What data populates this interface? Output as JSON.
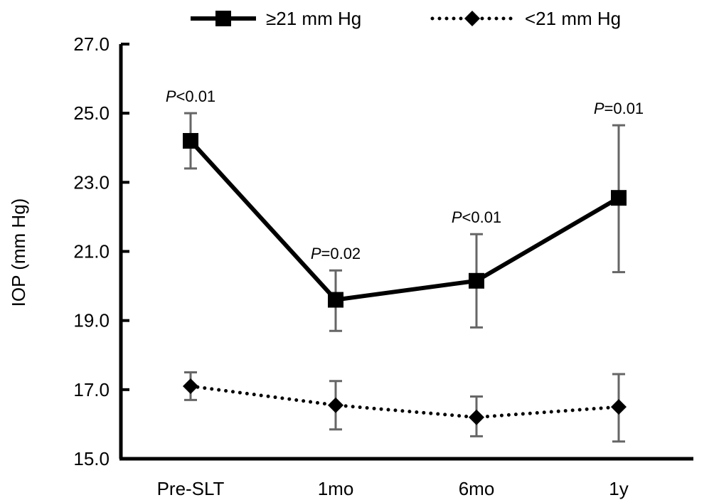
{
  "chart_data": {
    "type": "line",
    "title": "",
    "xlabel": "",
    "ylabel": "IOP (mm Hg)",
    "categories": [
      "Pre-SLT",
      "1mo",
      "6mo",
      "1y"
    ],
    "ylim": [
      15.0,
      27.0
    ],
    "yticks": [
      "15.0",
      "17.0",
      "19.0",
      "21.0",
      "23.0",
      "25.0",
      "27.0"
    ],
    "grid": false,
    "legend_position": "top",
    "series": [
      {
        "name": "≥21 mm Hg",
        "values": [
          24.2,
          19.6,
          20.15,
          22.55
        ],
        "error_low": [
          23.4,
          18.7,
          18.8,
          20.4
        ],
        "error_high": [
          25.0,
          20.45,
          21.5,
          24.65
        ],
        "marker": "square",
        "line_style": "solid",
        "color": "#000000"
      },
      {
        "name": "<21 mm Hg",
        "values": [
          17.1,
          16.55,
          16.2,
          16.5
        ],
        "error_low": [
          16.7,
          15.85,
          15.65,
          15.5
        ],
        "error_high": [
          17.5,
          17.25,
          16.8,
          17.45
        ],
        "marker": "diamond",
        "line_style": "dotted",
        "color": "#000000"
      }
    ],
    "annotations": [
      {
        "category": "Pre-SLT",
        "italic": "P",
        "rest": "<0.01"
      },
      {
        "category": "1mo",
        "italic": "P",
        "rest": "=0.02"
      },
      {
        "category": "6mo",
        "italic": "P",
        "rest": "<0.01"
      },
      {
        "category": "1y",
        "italic": "P",
        "rest": "=0.01"
      }
    ],
    "error_bar_color": "#666666"
  }
}
